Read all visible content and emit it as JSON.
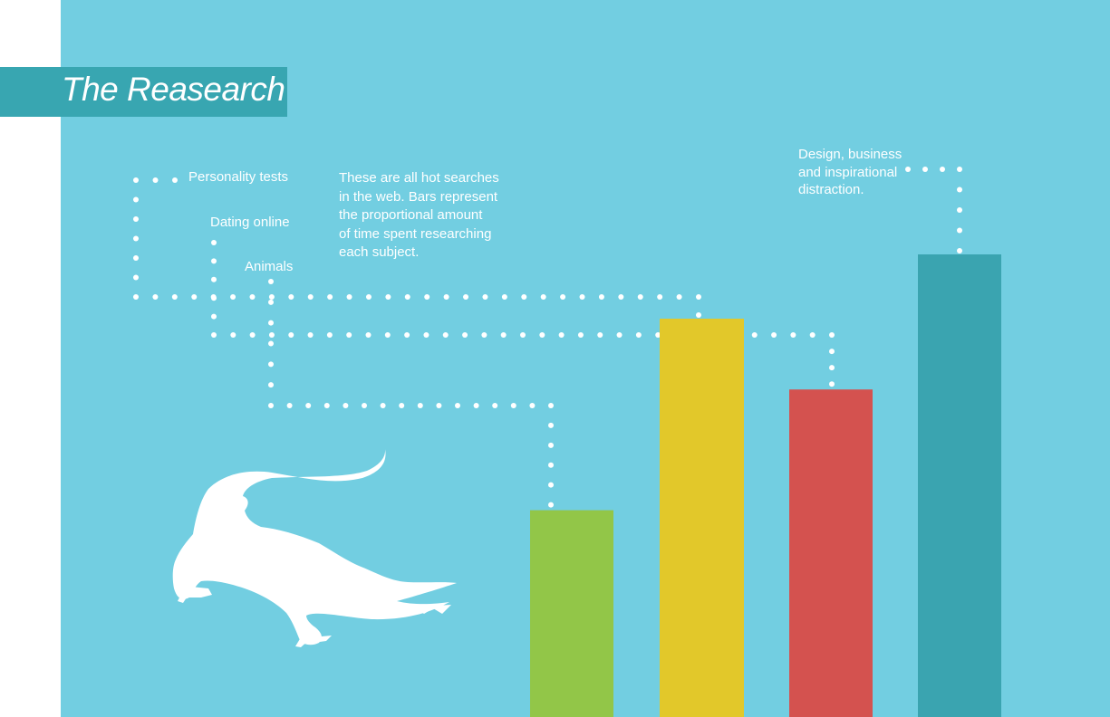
{
  "page": {
    "title": "The Reasearch",
    "note_lines": [
      "These are all hot searches",
      "in the web. Bars represent",
      "the proportional amount",
      "of time spent researching",
      "each subject."
    ]
  },
  "colors": {
    "background": "#72cee1",
    "banner": "#38a6b1",
    "text": "#ffffff"
  },
  "chart_data": {
    "type": "bar",
    "title": "The Reasearch",
    "xlabel": "",
    "ylabel": "",
    "value_units": "relative share of research time (tallest bar = 100)",
    "categories": [
      "Animals",
      "Personality tests",
      "Dating online",
      "Design, business and inspirational distraction."
    ],
    "category_lines": [
      [
        "Animals"
      ],
      [
        "Personality tests"
      ],
      [
        "Dating online"
      ],
      [
        "Design, business",
        "and inspirational",
        "distraction."
      ]
    ],
    "values": [
      44.7,
      86.1,
      70.8,
      100
    ],
    "ylim": [
      0,
      100
    ],
    "colors": [
      "#92c648",
      "#e2c82a",
      "#d4524f",
      "#3aa4b0"
    ],
    "grid": false,
    "legend": "none"
  }
}
